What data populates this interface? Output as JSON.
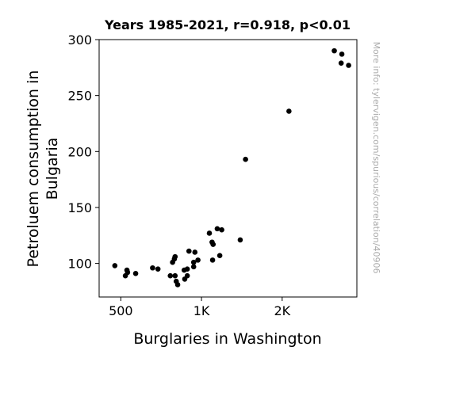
{
  "chart_data": {
    "type": "scatter",
    "title": "Years 1985-2021, r=0.918, p<0.01",
    "xlabel": "Burglaries in Washington",
    "ylabel_lines": [
      "Petroluem consumption in",
      "Bulgaria"
    ],
    "x_scale": "log",
    "xlim": [
      415,
      3800
    ],
    "ylim": [
      70,
      300
    ],
    "x_ticks": [
      {
        "value": 500,
        "label": "500"
      },
      {
        "value": 1000,
        "label": "1K"
      },
      {
        "value": 2000,
        "label": "2K"
      }
    ],
    "y_ticks": [
      {
        "value": 100,
        "label": "100"
      },
      {
        "value": 150,
        "label": "150"
      },
      {
        "value": 200,
        "label": "200"
      },
      {
        "value": 250,
        "label": "250"
      },
      {
        "value": 300,
        "label": "300"
      }
    ],
    "grid": false,
    "marker_color": "#000000",
    "points": [
      {
        "x": 475,
        "y": 98
      },
      {
        "x": 520,
        "y": 89
      },
      {
        "x": 527,
        "y": 94
      },
      {
        "x": 530,
        "y": 92
      },
      {
        "x": 568,
        "y": 91
      },
      {
        "x": 657,
        "y": 96
      },
      {
        "x": 688,
        "y": 95
      },
      {
        "x": 765,
        "y": 89
      },
      {
        "x": 780,
        "y": 101
      },
      {
        "x": 792,
        "y": 104
      },
      {
        "x": 797,
        "y": 106
      },
      {
        "x": 797,
        "y": 89
      },
      {
        "x": 805,
        "y": 84
      },
      {
        "x": 815,
        "y": 81
      },
      {
        "x": 862,
        "y": 94
      },
      {
        "x": 866,
        "y": 86
      },
      {
        "x": 885,
        "y": 95
      },
      {
        "x": 885,
        "y": 89
      },
      {
        "x": 898,
        "y": 111
      },
      {
        "x": 935,
        "y": 97
      },
      {
        "x": 935,
        "y": 101
      },
      {
        "x": 945,
        "y": 110
      },
      {
        "x": 970,
        "y": 103
      },
      {
        "x": 1070,
        "y": 127
      },
      {
        "x": 1095,
        "y": 119
      },
      {
        "x": 1105,
        "y": 117
      },
      {
        "x": 1100,
        "y": 103
      },
      {
        "x": 1145,
        "y": 131
      },
      {
        "x": 1170,
        "y": 107
      },
      {
        "x": 1190,
        "y": 130
      },
      {
        "x": 1395,
        "y": 121
      },
      {
        "x": 1460,
        "y": 193
      },
      {
        "x": 2120,
        "y": 236
      },
      {
        "x": 3130,
        "y": 290
      },
      {
        "x": 3320,
        "y": 279
      },
      {
        "x": 3340,
        "y": 287
      },
      {
        "x": 3540,
        "y": 277
      }
    ]
  },
  "watermark": "More info: tylervigen.com/spurious/correlation/40906"
}
